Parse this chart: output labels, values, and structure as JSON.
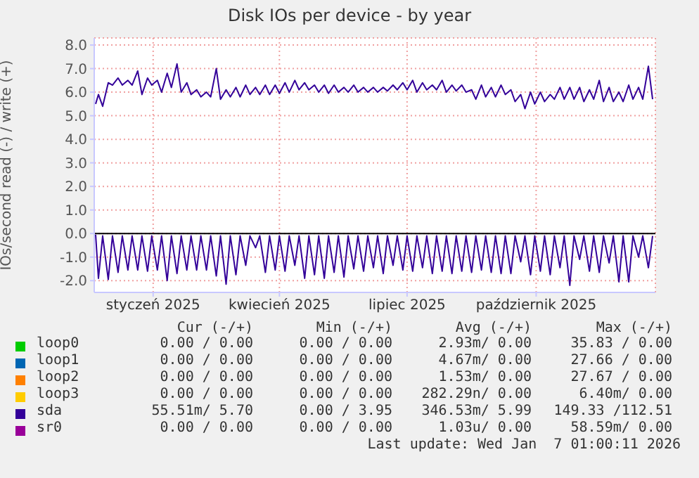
{
  "chart_data": {
    "type": "line",
    "title": "Disk IOs per device - by year",
    "ylabel": "IOs/second read (-) / write (+)",
    "x": [
      "2024-12-06",
      "2024-12-08",
      "2024-12-11",
      "2024-12-15",
      "2024-12-18",
      "2024-12-22",
      "2024-12-25",
      "2024-12-29",
      "2025-01-01",
      "2025-01-05",
      "2025-01-08",
      "2025-01-12",
      "2025-01-15",
      "2025-01-19",
      "2025-01-22",
      "2025-01-26",
      "2025-01-29",
      "2025-02-02",
      "2025-02-05",
      "2025-02-09",
      "2025-02-12",
      "2025-02-16",
      "2025-02-19",
      "2025-02-23",
      "2025-02-26",
      "2025-03-02",
      "2025-03-05",
      "2025-03-09",
      "2025-03-12",
      "2025-03-16",
      "2025-03-19",
      "2025-03-23",
      "2025-03-26",
      "2025-03-30",
      "2025-04-02",
      "2025-04-06",
      "2025-04-09",
      "2025-04-13",
      "2025-04-16",
      "2025-04-20",
      "2025-04-23",
      "2025-04-27",
      "2025-04-30",
      "2025-05-04",
      "2025-05-07",
      "2025-05-11",
      "2025-05-14",
      "2025-05-18",
      "2025-05-21",
      "2025-05-25",
      "2025-05-28",
      "2025-06-01",
      "2025-06-04",
      "2025-06-08",
      "2025-06-11",
      "2025-06-15",
      "2025-06-18",
      "2025-06-22",
      "2025-06-25",
      "2025-06-29",
      "2025-07-02",
      "2025-07-06",
      "2025-07-09",
      "2025-07-13",
      "2025-07-16",
      "2025-07-20",
      "2025-07-23",
      "2025-07-27",
      "2025-07-30",
      "2025-08-03",
      "2025-08-06",
      "2025-08-10",
      "2025-08-13",
      "2025-08-17",
      "2025-08-20",
      "2025-08-24",
      "2025-08-27",
      "2025-08-31",
      "2025-09-03",
      "2025-09-07",
      "2025-09-10",
      "2025-09-14",
      "2025-09-17",
      "2025-09-21",
      "2025-09-24",
      "2025-09-28",
      "2025-10-01",
      "2025-10-05",
      "2025-10-08",
      "2025-10-12",
      "2025-10-15",
      "2025-10-19",
      "2025-10-22",
      "2025-10-26",
      "2025-10-29",
      "2025-11-02",
      "2025-11-05",
      "2025-11-09",
      "2025-11-12",
      "2025-11-16",
      "2025-11-19",
      "2025-11-23",
      "2025-11-26",
      "2025-11-30",
      "2025-12-03",
      "2025-12-07",
      "2025-12-10",
      "2025-12-14",
      "2025-12-17",
      "2025-12-21",
      "2025-12-24",
      "2025-12-28",
      "2025-12-31",
      "2026-01-04",
      "2026-01-07"
    ],
    "series": [
      {
        "name": "loop0",
        "color": "#00cc00",
        "values": [
          null,
          null,
          null,
          null,
          null,
          null,
          null,
          null,
          null,
          null,
          null,
          null,
          null,
          null,
          null,
          null,
          null,
          null,
          null,
          null,
          null,
          null,
          null,
          null,
          null,
          null,
          null,
          null,
          null,
          null,
          null,
          null,
          null,
          null,
          null,
          null,
          null,
          null,
          null,
          null,
          null,
          null,
          null,
          null,
          null,
          null,
          null,
          null,
          null,
          null,
          null,
          null,
          null,
          null,
          null,
          null,
          null,
          null,
          null,
          null,
          null,
          null,
          null,
          null,
          null,
          null,
          null,
          null,
          null,
          null,
          null,
          null,
          null,
          null,
          null,
          null,
          null,
          null,
          null,
          null,
          null,
          null,
          null,
          null,
          null,
          null,
          null,
          null,
          null,
          null,
          null,
          null,
          null,
          null,
          null,
          null,
          null,
          null,
          null,
          null,
          null,
          null,
          null,
          null,
          null,
          null,
          null,
          null,
          null,
          null,
          null,
          null,
          null,
          null,
          null
        ]
      },
      {
        "name": "loop1",
        "color": "#0066b3",
        "values": [
          null,
          null,
          null,
          null,
          null,
          null,
          null,
          null,
          null,
          null,
          null,
          null,
          null,
          null,
          null,
          null,
          null,
          null,
          null,
          null,
          null,
          null,
          null,
          null,
          null,
          null,
          null,
          null,
          null,
          null,
          null,
          null,
          null,
          null,
          null,
          null,
          null,
          null,
          null,
          null,
          null,
          null,
          null,
          null,
          null,
          null,
          null,
          null,
          null,
          null,
          null,
          null,
          null,
          null,
          null,
          null,
          null,
          null,
          null,
          null,
          null,
          null,
          null,
          null,
          null,
          null,
          null,
          null,
          null,
          null,
          null,
          null,
          null,
          null,
          null,
          null,
          null,
          null,
          null,
          null,
          null,
          null,
          null,
          null,
          null,
          null,
          null,
          null,
          null,
          null,
          null,
          null,
          null,
          null,
          null,
          null,
          null,
          null,
          null,
          null,
          null,
          null,
          null,
          null,
          null,
          null,
          null,
          null,
          null,
          null,
          null,
          null,
          null,
          null,
          null
        ]
      },
      {
        "name": "loop2",
        "color": "#ff8000",
        "values": [
          null,
          null,
          null,
          null,
          null,
          null,
          null,
          null,
          null,
          null,
          null,
          null,
          null,
          null,
          null,
          null,
          null,
          null,
          null,
          null,
          null,
          null,
          null,
          null,
          null,
          null,
          null,
          null,
          null,
          null,
          null,
          null,
          null,
          null,
          null,
          null,
          null,
          null,
          null,
          null,
          null,
          null,
          null,
          null,
          null,
          null,
          null,
          null,
          null,
          null,
          null,
          null,
          null,
          null,
          null,
          null,
          null,
          null,
          null,
          null,
          null,
          null,
          null,
          null,
          null,
          null,
          null,
          null,
          null,
          null,
          null,
          null,
          null,
          null,
          null,
          null,
          null,
          null,
          null,
          null,
          null,
          null,
          null,
          null,
          null,
          null,
          null,
          null,
          null,
          null,
          null,
          null,
          null,
          null,
          null,
          null,
          null,
          null,
          null,
          null,
          null,
          null,
          null,
          null,
          null,
          null,
          null,
          null,
          null,
          null,
          null,
          null,
          null,
          null,
          null
        ]
      },
      {
        "name": "loop3",
        "color": "#ffcc00",
        "values": [
          null,
          null,
          null,
          null,
          null,
          null,
          null,
          null,
          null,
          null,
          null,
          null,
          null,
          null,
          null,
          null,
          null,
          null,
          null,
          null,
          null,
          null,
          null,
          null,
          null,
          null,
          null,
          null,
          null,
          null,
          null,
          null,
          null,
          null,
          null,
          null,
          null,
          null,
          null,
          null,
          null,
          null,
          null,
          null,
          null,
          null,
          null,
          null,
          null,
          null,
          null,
          null,
          null,
          null,
          null,
          null,
          null,
          null,
          null,
          null,
          null,
          null,
          null,
          null,
          null,
          null,
          null,
          null,
          null,
          null,
          null,
          null,
          null,
          null,
          null,
          null,
          null,
          null,
          null,
          null,
          null,
          null,
          null,
          null,
          null,
          null,
          null,
          null,
          null,
          null,
          null,
          null,
          null,
          null,
          null,
          null,
          null,
          null,
          null,
          null,
          null,
          null,
          null,
          null,
          null,
          null,
          null,
          null,
          null,
          null,
          null,
          null,
          null,
          null,
          null
        ]
      },
      {
        "name": "sda",
        "color": "#330099",
        "values": [
          5.5,
          5.9,
          5.4,
          6.4,
          6.3,
          6.6,
          6.3,
          6.5,
          6.3,
          6.9,
          5.9,
          6.6,
          6.3,
          6.5,
          6.0,
          6.8,
          6.2,
          7.2,
          6.0,
          6.4,
          5.9,
          6.1,
          5.8,
          6.0,
          5.8,
          7.0,
          5.7,
          6.1,
          5.8,
          6.2,
          5.8,
          6.3,
          5.9,
          6.2,
          5.9,
          6.3,
          5.9,
          6.3,
          5.95,
          6.4,
          6.0,
          6.5,
          6.1,
          6.4,
          6.1,
          6.3,
          6.0,
          6.3,
          5.95,
          6.3,
          6.0,
          6.2,
          6.0,
          6.3,
          6.0,
          6.2,
          6.0,
          6.2,
          6.0,
          6.2,
          6.05,
          6.3,
          6.1,
          6.4,
          6.1,
          6.5,
          6.0,
          6.4,
          6.1,
          6.3,
          6.1,
          6.5,
          6.0,
          6.3,
          6.05,
          6.3,
          6.0,
          6.1,
          5.7,
          6.3,
          5.8,
          6.2,
          5.8,
          6.3,
          5.9,
          6.1,
          5.6,
          5.9,
          5.3,
          6.0,
          5.5,
          6.0,
          5.6,
          5.9,
          5.7,
          6.2,
          5.7,
          6.2,
          5.7,
          6.2,
          5.6,
          6.1,
          5.7,
          6.5,
          5.6,
          6.2,
          5.6,
          6.0,
          5.6,
          6.3,
          5.7,
          6.2,
          5.7,
          7.1,
          5.7
        ]
      },
      {
        "color": "#330099",
        "values": [
          -0.05,
          -1.9,
          -0.1,
          -1.95,
          -0.1,
          -1.65,
          -0.1,
          -1.55,
          -0.1,
          -1.55,
          -0.1,
          -1.6,
          -0.1,
          -1.55,
          -0.1,
          -2.0,
          -0.1,
          -1.7,
          -0.1,
          -1.55,
          -0.1,
          -1.55,
          -0.1,
          -1.55,
          -0.1,
          -1.8,
          -0.1,
          -2.15,
          -0.1,
          -1.75,
          -0.1,
          -1.35,
          -0.1,
          -0.6,
          -0.1,
          -1.65,
          -0.1,
          -1.55,
          -0.1,
          -1.6,
          -0.1,
          -1.35,
          -0.1,
          -1.9,
          -0.1,
          -1.75,
          -0.1,
          -1.9,
          -0.1,
          -1.65,
          -0.1,
          -1.85,
          -0.1,
          -1.5,
          -0.1,
          -1.6,
          -0.1,
          -1.45,
          -0.1,
          -1.7,
          -0.1,
          -1.35,
          -0.1,
          -1.55,
          -0.1,
          -1.6,
          -0.1,
          -1.45,
          -0.1,
          -1.7,
          -0.1,
          -1.6,
          -0.1,
          -1.7,
          -0.1,
          -1.6,
          -0.1,
          -1.65,
          -0.1,
          -1.55,
          -0.1,
          -1.65,
          -0.1,
          -1.7,
          -0.1,
          -1.7,
          -0.1,
          -1.2,
          -0.1,
          -1.75,
          -0.1,
          -1.6,
          -0.1,
          -1.75,
          -0.1,
          -1.45,
          -0.1,
          -2.2,
          -0.1,
          -1.1,
          -0.1,
          -1.6,
          -0.1,
          -1.65,
          -0.1,
          -1.25,
          -0.1,
          -2.05,
          -0.1,
          -2.05,
          -0.1,
          -1.0,
          -0.1,
          -1.45,
          -0.1
        ]
      },
      {
        "name": "sr0",
        "color": "#990099",
        "values": [
          null,
          null,
          null,
          null,
          null,
          null,
          null,
          null,
          null,
          null,
          null,
          null,
          null,
          null,
          null,
          null,
          null,
          null,
          null,
          null,
          null,
          null,
          null,
          null,
          null,
          null,
          null,
          null,
          null,
          null,
          null,
          null,
          null,
          null,
          null,
          null,
          null,
          null,
          null,
          null,
          null,
          null,
          null,
          null,
          null,
          null,
          null,
          null,
          null,
          null,
          null,
          null,
          null,
          null,
          null,
          null,
          null,
          null,
          null,
          null,
          null,
          null,
          null,
          null,
          null,
          null,
          null,
          null,
          null,
          null,
          null,
          null,
          null,
          null,
          null,
          null,
          null,
          null,
          null,
          null,
          null,
          null,
          null,
          null,
          null,
          null,
          null,
          null,
          null,
          null,
          null,
          null,
          null,
          null,
          null,
          null,
          null,
          null,
          null,
          null,
          null,
          null,
          null,
          null,
          null,
          null,
          null,
          null,
          null,
          null,
          null,
          null,
          null,
          null,
          null
        ]
      }
    ],
    "xlim": [
      "2024-12-05",
      "2026-01-09"
    ],
    "xticks": [
      {
        "value": "2025-01-16",
        "label": "styczeń 2025"
      },
      {
        "value": "2025-04-16",
        "label": "kwiecień 2025"
      },
      {
        "value": "2025-07-16",
        "label": "lipiec 2025"
      },
      {
        "value": "2025-10-16",
        "label": "październik 2025"
      }
    ],
    "ylim": [
      -2.5,
      8.3
    ],
    "yticks": [
      {
        "value": -2,
        "label": "-2.0"
      },
      {
        "value": -1,
        "label": "-1.0"
      },
      {
        "value": 0,
        "label": "0.0"
      },
      {
        "value": 1,
        "label": "1.0"
      },
      {
        "value": 2,
        "label": "2.0"
      },
      {
        "value": 3,
        "label": "3.0"
      },
      {
        "value": 4,
        "label": "4.0"
      },
      {
        "value": 5,
        "label": "5.0"
      },
      {
        "value": 6,
        "label": "6.0"
      },
      {
        "value": 7,
        "label": "7.0"
      },
      {
        "value": 8,
        "label": "8.0"
      }
    ],
    "ref_lines": [
      {
        "axis": "y",
        "value": 0,
        "color": "#000000"
      }
    ],
    "grid": true,
    "legend": "bottom",
    "annotations": [
      "Cur (-/+)",
      "Min (-/+)",
      "Avg (-/+)",
      "Max (-/+)",
      "0.00 / 0.00",
      "0.00 / 0.00",
      "2.93m/ 0.00",
      "35.83 / 0.00",
      "0.00 / 0.00",
      "0.00 / 0.00",
      "4.67m/ 0.00",
      "27.66 / 0.00",
      "0.00 / 0.00",
      "0.00 / 0.00",
      "1.53m/ 0.00",
      "27.67 / 0.00",
      "0.00 / 0.00",
      "0.00 / 0.00",
      "282.29n/ 0.00",
      "6.40m/ 0.00",
      "55.51m/ 5.70",
      "0.00 / 3.95",
      "346.53m/ 5.99",
      "149.33 /112.51",
      "0.00 / 0.00",
      "0.00 / 0.00",
      "1.03u/ 0.00",
      "58.59m/ 0.00",
      "Last update: Wed Jan  7 01:00:11 2026"
    ]
  }
}
